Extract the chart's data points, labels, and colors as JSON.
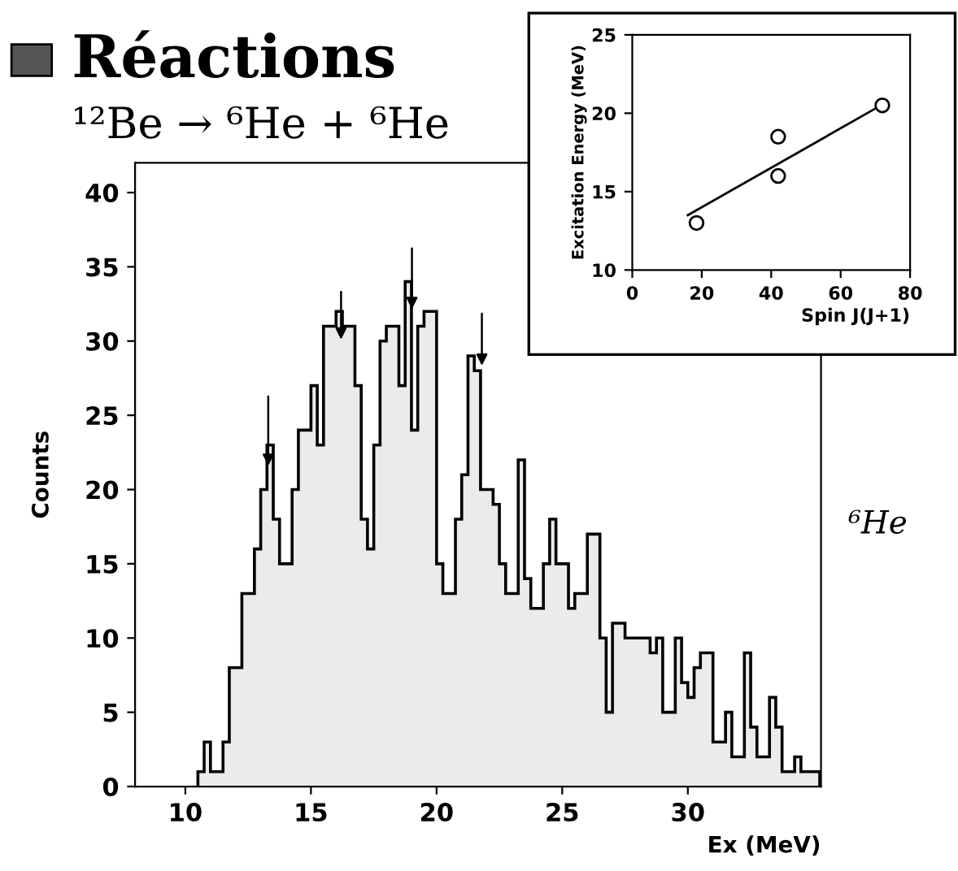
{
  "chart_data": [
    {
      "type": "histogram",
      "title": "Réactions",
      "subtitle": "¹²Be → ⁶He + ⁶He",
      "xlabel": "Ex (MeV)",
      "ylabel": "Counts",
      "bins": [
        10.5,
        10.75,
        11.0,
        11.25,
        11.5,
        11.75,
        12.0,
        12.25,
        12.5,
        12.75,
        13.0,
        13.25,
        13.5,
        13.75,
        14.0,
        14.25,
        14.5,
        14.75,
        15.0,
        15.25,
        15.5,
        15.75,
        16.0,
        16.25,
        16.5,
        16.75,
        17.0,
        17.25,
        17.5,
        17.75,
        18.0,
        18.25,
        18.5,
        18.75,
        19.0,
        19.25,
        19.5,
        19.75,
        20.0,
        20.25,
        20.5,
        20.75,
        21.0,
        21.25,
        21.5,
        21.75,
        22.0,
        22.25,
        22.5,
        22.75,
        23.0,
        23.25,
        23.5,
        23.75,
        24.0,
        24.25,
        24.5,
        24.75,
        25.0,
        25.25,
        25.5,
        25.75,
        26.0,
        26.25,
        26.5,
        26.75,
        27.0,
        27.25,
        27.5,
        27.75,
        28.0,
        28.25,
        28.5,
        28.75,
        29.0,
        29.25,
        29.5,
        29.75,
        30.0,
        30.25,
        30.5,
        30.75,
        31.0,
        31.25,
        31.5,
        31.75,
        32.0,
        32.25,
        32.5,
        32.75,
        33.0,
        33.25,
        33.5,
        33.75,
        34.0,
        34.25,
        34.5,
        34.75,
        35.0,
        35.25
      ],
      "values": [
        1,
        3,
        1,
        1,
        3,
        8,
        8,
        13,
        13,
        16,
        20,
        23,
        18,
        15,
        15,
        20,
        24,
        24,
        27,
        23,
        31,
        31,
        32,
        31,
        31,
        27,
        18,
        16,
        23,
        30,
        31,
        31,
        27,
        34,
        24,
        31,
        32,
        32,
        15,
        13,
        13,
        18,
        21,
        29,
        28,
        20,
        20,
        19,
        15,
        13,
        13,
        22,
        14,
        12,
        12,
        15,
        18,
        15,
        15,
        12,
        13,
        13,
        17,
        17,
        10,
        5,
        11,
        11,
        10,
        10,
        10,
        10,
        9,
        10,
        5,
        5,
        10,
        7,
        6,
        8,
        9,
        9,
        3,
        3,
        5,
        2,
        2,
        9,
        4,
        2,
        2,
        6,
        4,
        1,
        1,
        2,
        1,
        1,
        1
      ],
      "color": "#000000",
      "xlim": [
        8,
        35.3
      ],
      "ylim": [
        0,
        42
      ],
      "xticks": [
        10,
        15,
        20,
        25,
        30
      ],
      "yticks": [
        0,
        5,
        10,
        15,
        20,
        25,
        30,
        35,
        40
      ],
      "grid": false,
      "annotations": [
        "⁶He"
      ]
    },
    {
      "type": "scatter",
      "xlabel": "Spin J(J+1)",
      "ylabel": "Excitation Energy (MeV)",
      "series": [
        {
          "type": "scatter",
          "color": "#000000",
          "x": [
            18.5,
            42,
            42,
            72
          ],
          "values": [
            13,
            18.5,
            16,
            20.5
          ],
          "marker": "circle"
        },
        {
          "type": "line",
          "color": "#000000",
          "x": [
            16,
            70
          ],
          "values": [
            13.5,
            20.3
          ]
        }
      ],
      "xlim": [
        0,
        80
      ],
      "ylim": [
        10,
        25
      ],
      "xticks": [
        0,
        20,
        40,
        60,
        80
      ],
      "yticks": [
        10,
        15,
        20,
        25
      ],
      "grid": false
    }
  ]
}
